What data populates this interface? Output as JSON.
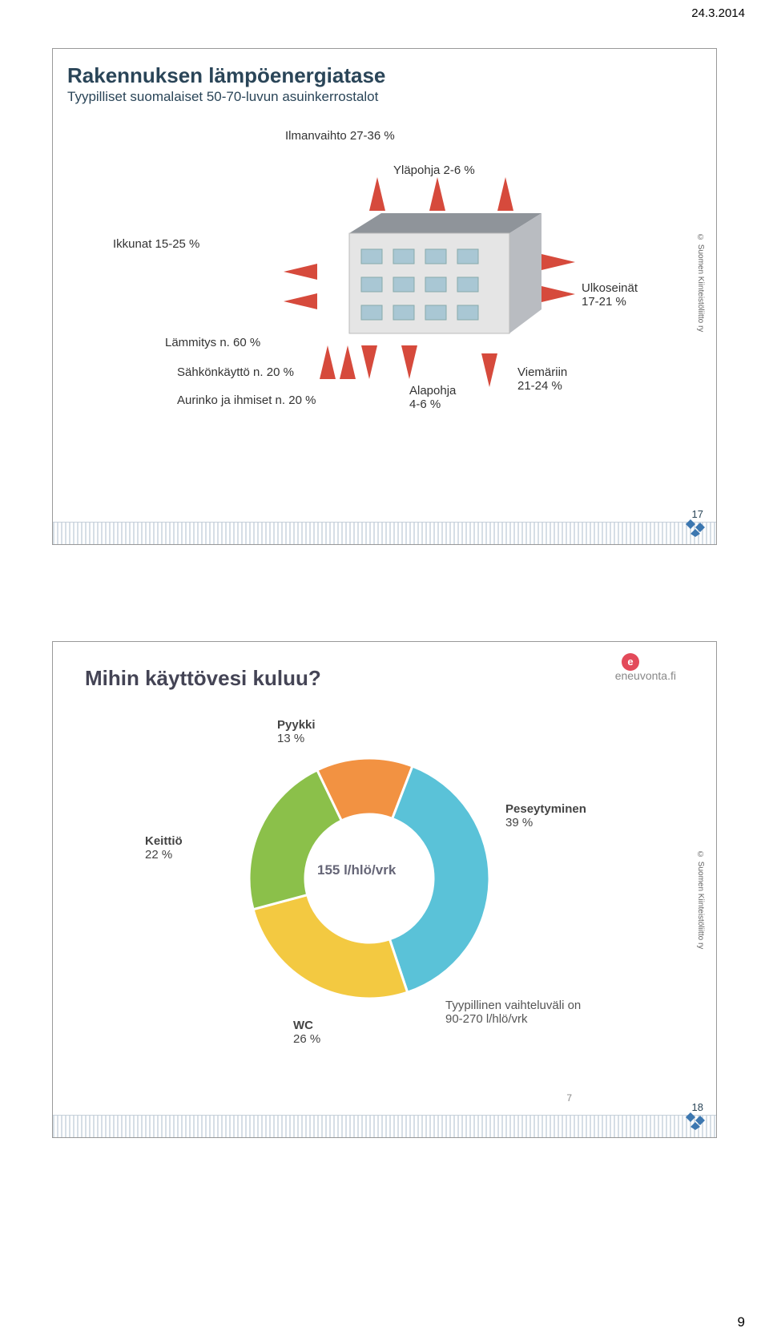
{
  "page": {
    "date_header": "24.3.2014",
    "bottom_page_number": "9"
  },
  "slide1": {
    "title": "Rakennuksen lämpöenergiatase",
    "subtitle": "Tyypilliset suomalaiset 50-70-luvun asuinkerrostalot",
    "labels": {
      "ilmanvaihto": "Ilmanvaihto 27-36 %",
      "ylapohja": "Yläpohja 2-6 %",
      "ikkunat": "Ikkunat 15-25 %",
      "lammitys": "Lämmitys n. 60 %",
      "sahko": "Sähkönkäyttö n. 20 %",
      "aurinko": "Aurinko ja ihmiset n. 20 %",
      "alapohja_l1": "Alapohja",
      "alapohja_l2": "4-6 %",
      "ulkoseinat_l1": "Ulkoseinät",
      "ulkoseinat_l2": "17-21 %",
      "viemari_l1": "Viemäriin",
      "viemari_l2": "21-24 %"
    },
    "page_number": "17",
    "copyright": "© Suomen Kiinteistöliitto ry",
    "colors": {
      "arrow": "#d64a3c",
      "building_body": "#e5e5e5",
      "building_roof": "#8f949a",
      "window": "#a9c7d4",
      "title": "#2a4558"
    }
  },
  "slide2": {
    "title": "Mihin käyttövesi kuluu?",
    "brand": "eneuvonta.fi",
    "brand_icon": "e",
    "center_label": "155 l/hlö/vrk",
    "tagline_l1": "Tyypillinen vaihteluväli on",
    "tagline_l2": "90-270 l/hlö/vrk",
    "donut": {
      "type": "donut",
      "slices": [
        {
          "name": "Peseytyminen",
          "value": 39,
          "label": "Peseytyminen",
          "pct": "39 %",
          "color": "#5ac2d8"
        },
        {
          "name": "WC",
          "value": 26,
          "label": "WC",
          "pct": "26 %",
          "color": "#f3c941"
        },
        {
          "name": "Keittiö",
          "value": 22,
          "label": "Keittiö",
          "pct": "22 %",
          "color": "#8bc04a"
        },
        {
          "name": "Pyykki",
          "value": 13,
          "label": "Pyykki",
          "pct": "13 %",
          "color": "#f29242"
        }
      ],
      "inner_radius": 80,
      "outer_radius": 150,
      "background_color": "#ffffff"
    },
    "corner_page_7": "7",
    "page_number": "18",
    "copyright": "© Suomen Kiinteistöliitto ry"
  }
}
